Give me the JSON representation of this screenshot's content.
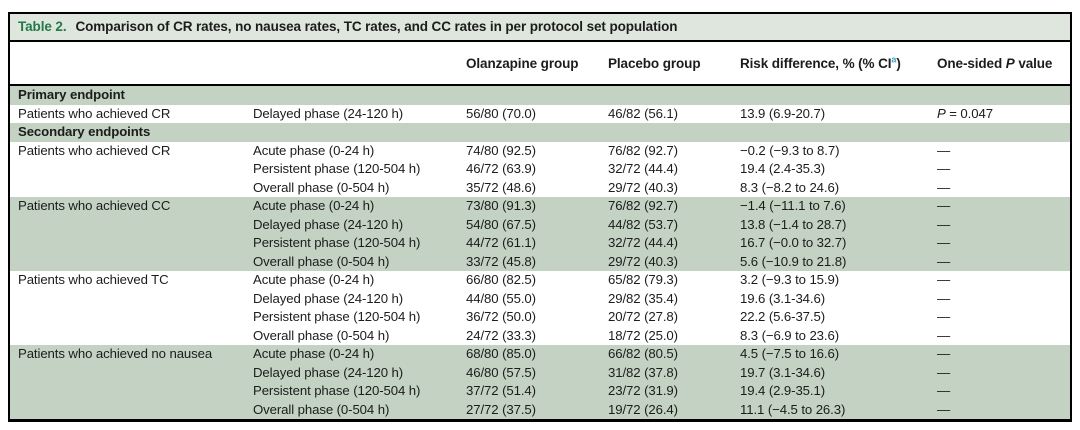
{
  "colors": {
    "title_bar_bg": "#dfe6de",
    "band_bg": "#c3d2c2",
    "table_label_green": "#23794a",
    "ci_superscript_blue": "#3f9dc9",
    "border_black": "#000000"
  },
  "table": {
    "label": "Table 2.",
    "title": "Comparison of CR rates, no nausea rates, TC rates, and CC rates in per protocol set population",
    "header": {
      "olanzapine": "Olanzapine group",
      "placebo": "Placebo group",
      "risk_prefix": "Risk difference, % (% CI",
      "risk_superscript": "a",
      "risk_suffix": ")",
      "pvalue_prefix": "One-sided ",
      "pvalue_italic": "P",
      "pvalue_suffix": " value"
    },
    "sections": [
      {
        "heading": "Primary endpoint",
        "shaded_heading": true,
        "groups": [
          {
            "endpoint": "Patients who achieved CR",
            "shaded": false,
            "rows": [
              {
                "phase": "Delayed phase (24-120 h)",
                "olanzapine": "56/80 (70.0)",
                "placebo": "46/82 (56.1)",
                "risk_difference": "13.9 (6.9-20.7)",
                "p_value": {
                  "italic": "P",
                  "text": " = 0.047"
                }
              }
            ]
          }
        ]
      },
      {
        "heading": "Secondary endpoints",
        "shaded_heading": true,
        "groups": [
          {
            "endpoint": "Patients who achieved CR",
            "shaded": false,
            "rows": [
              {
                "phase": "Acute phase (0-24 h)",
                "olanzapine": "74/80 (92.5)",
                "placebo": "76/82 (92.7)",
                "risk_difference": "−0.2 (−9.3 to 8.7)",
                "p_value": {
                  "text": "—"
                }
              },
              {
                "phase": "Persistent phase (120-504 h)",
                "olanzapine": "46/72 (63.9)",
                "placebo": "32/72 (44.4)",
                "risk_difference": "19.4 (2.4-35.3)",
                "p_value": {
                  "text": "—"
                }
              },
              {
                "phase": "Overall phase (0-504 h)",
                "olanzapine": "35/72 (48.6)",
                "placebo": "29/72 (40.3)",
                "risk_difference": "8.3 (−8.2 to 24.6)",
                "p_value": {
                  "text": "—"
                }
              }
            ]
          },
          {
            "endpoint": "Patients who achieved CC",
            "shaded": true,
            "rows": [
              {
                "phase": "Acute phase (0-24 h)",
                "olanzapine": "73/80 (91.3)",
                "placebo": "76/82 (92.7)",
                "risk_difference": "−1.4 (−11.1 to 7.6)",
                "p_value": {
                  "text": "—"
                }
              },
              {
                "phase": "Delayed phase (24-120 h)",
                "olanzapine": "54/80 (67.5)",
                "placebo": "44/82 (53.7)",
                "risk_difference": "13.8 (−1.4 to 28.7)",
                "p_value": {
                  "text": "—"
                }
              },
              {
                "phase": "Persistent phase (120-504 h)",
                "olanzapine": "44/72 (61.1)",
                "placebo": "32/72 (44.4)",
                "risk_difference": "16.7 (−0.0 to 32.7)",
                "p_value": {
                  "text": "—"
                }
              },
              {
                "phase": "Overall phase (0-504 h)",
                "olanzapine": "33/72 (45.8)",
                "placebo": "29/72 (40.3)",
                "risk_difference": "5.6 (−10.9 to 21.8)",
                "p_value": {
                  "text": "—"
                }
              }
            ]
          },
          {
            "endpoint": "Patients who achieved TC",
            "shaded": false,
            "rows": [
              {
                "phase": "Acute phase (0-24 h)",
                "olanzapine": "66/80 (82.5)",
                "placebo": "65/82 (79.3)",
                "risk_difference": "3.2 (−9.3 to 15.9)",
                "p_value": {
                  "text": "—"
                }
              },
              {
                "phase": "Delayed phase (24-120 h)",
                "olanzapine": "44/80 (55.0)",
                "placebo": "29/82 (35.4)",
                "risk_difference": "19.6 (3.1-34.6)",
                "p_value": {
                  "text": "—"
                }
              },
              {
                "phase": "Persistent phase (120-504 h)",
                "olanzapine": "36/72 (50.0)",
                "placebo": "20/72 (27.8)",
                "risk_difference": "22.2 (5.6-37.5)",
                "p_value": {
                  "text": "—"
                }
              },
              {
                "phase": "Overall phase (0-504 h)",
                "olanzapine": "24/72 (33.3)",
                "placebo": "18/72 (25.0)",
                "risk_difference": "8.3 (−6.9 to 23.6)",
                "p_value": {
                  "text": "—"
                }
              }
            ]
          },
          {
            "endpoint": "Patients who achieved no nausea",
            "shaded": true,
            "rows": [
              {
                "phase": "Acute phase (0-24 h)",
                "olanzapine": "68/80 (85.0)",
                "placebo": "66/82 (80.5)",
                "risk_difference": "4.5 (−7.5 to 16.6)",
                "p_value": {
                  "text": "—"
                }
              },
              {
                "phase": "Delayed phase (24-120 h)",
                "olanzapine": "46/80 (57.5)",
                "placebo": "31/82 (37.8)",
                "risk_difference": "19.7 (3.1-34.6)",
                "p_value": {
                  "text": "—"
                }
              },
              {
                "phase": "Persistent phase (120-504 h)",
                "olanzapine": "37/72 (51.4)",
                "placebo": "23/72 (31.9)",
                "risk_difference": "19.4 (2.9-35.1)",
                "p_value": {
                  "text": "—"
                }
              },
              {
                "phase": "Overall phase (0-504 h)",
                "olanzapine": "27/72 (37.5)",
                "placebo": "19/72 (26.4)",
                "risk_difference": "11.1 (−4.5 to 26.3)",
                "p_value": {
                  "text": "—"
                }
              }
            ]
          }
        ]
      }
    ]
  }
}
